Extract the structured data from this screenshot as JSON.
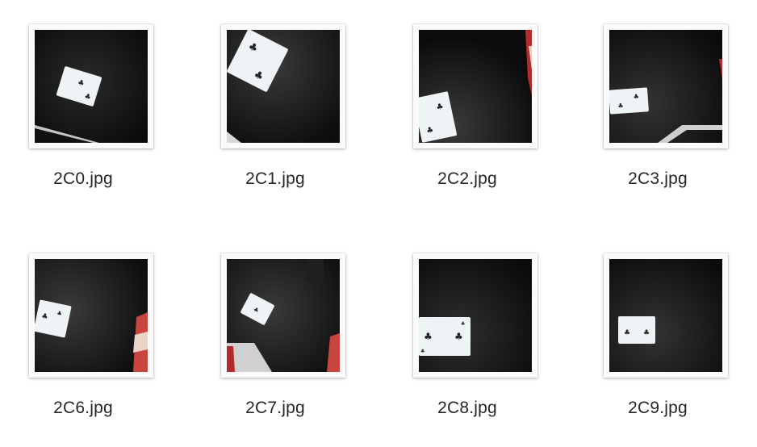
{
  "files": [
    {
      "name": "2C0.jpg",
      "icon": "card-photo-icon"
    },
    {
      "name": "2C1.jpg",
      "icon": "card-photo-icon"
    },
    {
      "name": "2C2.jpg",
      "icon": "card-photo-icon"
    },
    {
      "name": "2C3.jpg",
      "icon": "card-photo-icon"
    },
    {
      "name": "2C6.jpg",
      "icon": "card-photo-icon"
    },
    {
      "name": "2C7.jpg",
      "icon": "card-photo-icon"
    },
    {
      "name": "2C8.jpg",
      "icon": "card-photo-icon"
    },
    {
      "name": "2C9.jpg",
      "icon": "card-photo-icon"
    }
  ],
  "colors": {
    "background": "#ffffff",
    "table": "#121212",
    "card": "#eef3f5",
    "pip": "#222222",
    "label": "#262626"
  }
}
